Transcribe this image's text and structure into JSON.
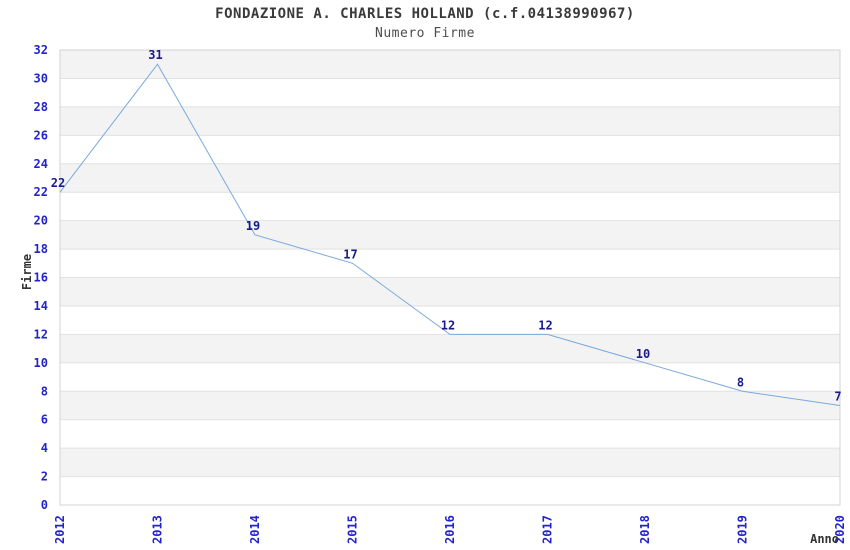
{
  "header": {
    "title": "FONDAZIONE A. CHARLES HOLLAND (c.f.04138990967)",
    "subtitle": "Numero Firme"
  },
  "chart_data": {
    "type": "line",
    "title": "FONDAZIONE A. CHARLES HOLLAND (c.f.04138990967)",
    "subtitle": "Numero Firme",
    "categories": [
      "2012",
      "2013",
      "2014",
      "2015",
      "2016",
      "2017",
      "2018",
      "2019",
      "2020"
    ],
    "values": [
      22,
      31,
      19,
      17,
      12,
      12,
      10,
      8,
      7
    ],
    "xlabel": "Anno",
    "ylabel": "Firme",
    "ylim": [
      0,
      32
    ],
    "ytick_step": 2,
    "grid": "horizontal-bands",
    "legend": "none",
    "markers": "none"
  },
  "colors": {
    "line": "#7aa8dc",
    "point_label": "#1a1a8c",
    "tick_label": "#2323cc",
    "axis_title": "#333333",
    "band_gray": "#f3f3f3",
    "band_white": "#ffffff",
    "gridline": "#e2e2e2",
    "plot_border": "#d3d3d3"
  }
}
